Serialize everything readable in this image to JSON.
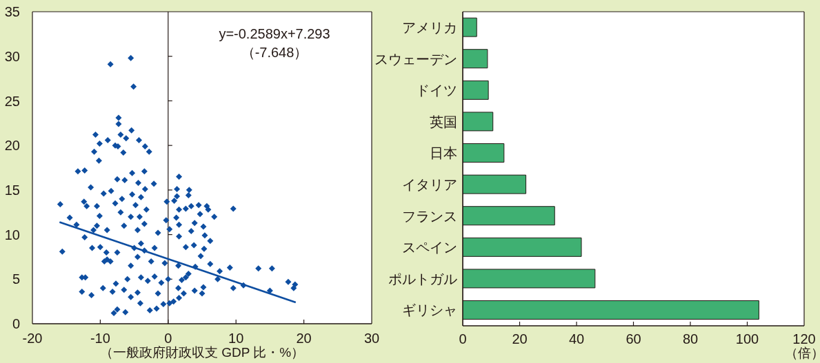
{
  "chart_data": [
    {
      "type": "scatter",
      "xlabel": "（一般政府財政収支 GDP 比・%）",
      "xlim": [
        -20,
        30
      ],
      "xticks": [
        -20,
        -10,
        0,
        10,
        20,
        30
      ],
      "ylim": [
        0,
        35
      ],
      "yticks": [
        0,
        5,
        10,
        15,
        20,
        25,
        30,
        35
      ],
      "annotations": [
        "y=-0.2589x+7.293",
        "（-7.648）"
      ],
      "series": [
        {
          "type": "scatter",
          "color": "#0e4ea1",
          "marker": "diamond",
          "x": [
            -8.5,
            -5.5,
            -5.1,
            -7.3,
            -7.3,
            -5.4,
            -10.7,
            -7.0,
            -8.9,
            -6.2,
            -4.3,
            -10.1,
            -7.8,
            -7.4,
            -3.4,
            -10.9,
            -6.6,
            -2.8,
            -10.2,
            -13.3,
            -12.3,
            -3.5,
            -5.3,
            1.6,
            -15.9,
            -15.6,
            -14.5,
            -13.5,
            -12.3,
            -12.7,
            -12.2,
            -12.7,
            -11.3,
            -11.2,
            -12.4,
            -11.4,
            -10.5,
            -10.1,
            -10.5,
            -10.0,
            -9.5,
            -9.6,
            -9.1,
            -9.4,
            -8.4,
            -8.2,
            -7.5,
            -8.0,
            -7.5,
            -6.3,
            -7.7,
            -6.4,
            -4.4,
            -2.1,
            -3.4,
            -4.1,
            -2.7,
            -1.7,
            -0.7,
            0.2,
            0.8,
            -0.2,
            1.3,
            3.1,
            3.0,
            1.3,
            0.9,
            1.6,
            2.6,
            3.4,
            4.5,
            5.7,
            5.9,
            4.7,
            6.8,
            9.6,
            3.9,
            3.4,
            5.2,
            5.4,
            6.2,
            3.8,
            2.6,
            1.6,
            1.6,
            1.2,
            5.3,
            4.8,
            6.2,
            7.6,
            9.1,
            9.6,
            11.1,
            13.3,
            15.3,
            15.0,
            17.7,
            18.7,
            18.5,
            7.3,
            5.2,
            5.0,
            3.9,
            2.3,
            1.6,
            2.6,
            -6,
            -4,
            -3,
            -2,
            -1,
            0,
            2,
            3,
            -4.5,
            -1.5,
            1.5,
            -5.5,
            -4.5,
            -3.5,
            -4,
            -5,
            -2.5,
            -0.5,
            1.5,
            -7.5,
            -8.5,
            -4.5,
            -3.5,
            -4.2,
            -3.2,
            -4.8,
            -4,
            -1.5,
            0.2,
            -0.3,
            -9,
            -7,
            -6.5,
            -7.8,
            -6.8,
            -5.5,
            -5.3,
            -9.0,
            -6.5,
            -5.5,
            -2,
            4,
            -11,
            -12
          ],
          "values": [
            29.1,
            29.8,
            26.6,
            23.1,
            22.4,
            21.7,
            21.2,
            21.2,
            20.6,
            20.8,
            20.6,
            20.2,
            20.0,
            19.9,
            19.9,
            19.3,
            19.2,
            19.3,
            18.3,
            17.1,
            17.2,
            17.1,
            16.9,
            16.5,
            13.4,
            8.1,
            11.9,
            11.1,
            9.7,
            5.2,
            5.2,
            3.6,
            3.2,
            8.5,
            13.7,
            15.3,
            13.2,
            12.1,
            11.0,
            8.6,
            14.6,
            4.0,
            8.0,
            7.0,
            14.9,
            3.6,
            16.2,
            1.2,
            1.6,
            1.3,
            4.5,
            16.1,
            15.8,
            15.7,
            15.1,
            2.3,
            1.5,
            1.7,
            2.2,
            2.3,
            2.5,
            13.7,
            15.1,
            15.0,
            14.4,
            14.3,
            13.8,
            12.8,
            12.9,
            13.2,
            13.3,
            13.2,
            12.8,
            12.3,
            12.0,
            12.9,
            11.3,
            10.4,
            10.9,
            9.9,
            9.3,
            8.8,
            8.6,
            9.8,
            11.1,
            11.9,
            8.4,
            7.6,
            6.7,
            5.9,
            6.3,
            4.0,
            4.3,
            6.2,
            6.2,
            3.7,
            4.7,
            4.4,
            4.0,
            5.0,
            4.1,
            3.4,
            3.7,
            3.4,
            2.9,
            5.2,
            5.0,
            5.2,
            4.8,
            5.3,
            4.6,
            5.0,
            4.9,
            5.6,
            3.5,
            3.4,
            4.0,
            6.5,
            7.5,
            8.2,
            9.0,
            8.5,
            7.0,
            6.8,
            6.5,
            8.0,
            7.0,
            10.5,
            11.2,
            12.0,
            12.8,
            13.3,
            14.2,
            10.2,
            10.6,
            11.6,
            10.5,
            12.5,
            11.0,
            13.5,
            14.0,
            12.0,
            14.5,
            7.2,
            3.8,
            3.0,
            8.5,
            6.4,
            10.5,
            13.2
          ]
        },
        {
          "type": "line",
          "color": "#0e4ea1",
          "marker": "none",
          "x": [
            -16,
            18.8
          ],
          "values": [
            11.4,
            2.4
          ]
        }
      ]
    },
    {
      "type": "bar",
      "orientation": "horizontal",
      "xlabel": "（倍）",
      "categories": [
        "アメリカ",
        "スウェーデン",
        "ドイツ",
        "英国",
        "日本",
        "イタリア",
        "フランス",
        "スペイン",
        "ポルトガル",
        "ギリシャ"
      ],
      "values": [
        4.9,
        8.7,
        9.0,
        10.6,
        14.5,
        22.2,
        32.3,
        41.7,
        46.5,
        104.1
      ],
      "color": "#3fb072",
      "xlim": [
        0,
        120
      ],
      "xticks": [
        0,
        20,
        40,
        60,
        80,
        100,
        120
      ]
    }
  ]
}
